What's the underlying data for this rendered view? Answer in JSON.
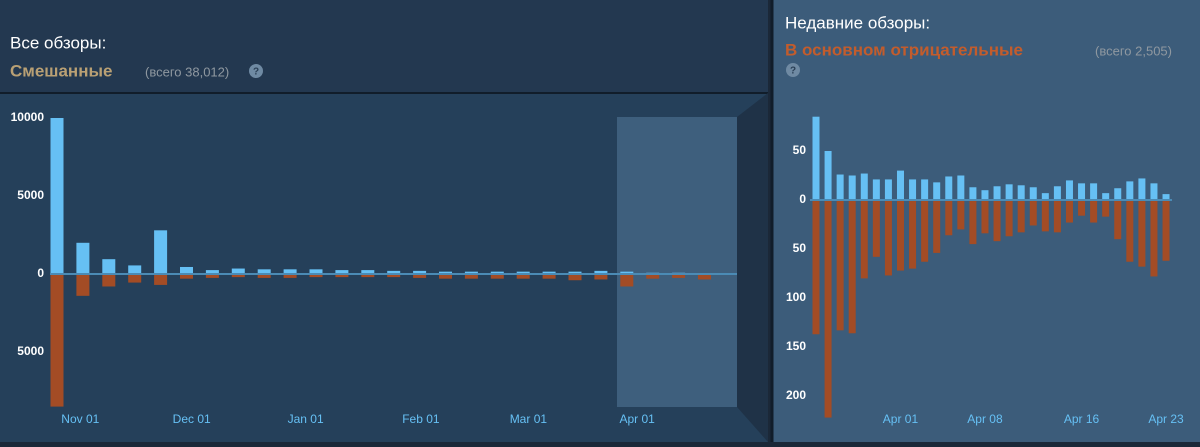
{
  "summaries": [
    {
      "label": "Все обзоры:",
      "rating": "Смешанные",
      "total": "(всего 38,012)",
      "help": "?"
    },
    {
      "label": "Недавние обзоры:",
      "rating": "В основном отрицательные",
      "total": "(всего 2,505)",
      "help": "?"
    }
  ],
  "chart_data": [
    {
      "type": "bar",
      "categories": [
        null,
        null,
        null,
        null,
        null,
        null,
        null,
        null,
        null,
        null,
        null,
        null,
        null,
        null,
        null,
        null,
        null,
        null,
        null,
        null,
        null,
        null,
        null,
        null,
        null,
        null
      ],
      "xticks": [
        {
          "value": 0.9,
          "label": "Nov 01"
        },
        {
          "value": 5.2,
          "label": "Dec 01"
        },
        {
          "value": 9.6,
          "label": "Jan 01"
        },
        {
          "value": 14.05,
          "label": "Feb 01"
        },
        {
          "value": 18.2,
          "label": "Mar 01"
        },
        {
          "value": 22.4,
          "label": "Apr 01"
        }
      ],
      "series": [
        {
          "color": "#66c0f4",
          "values": [
            10000,
            2000,
            950,
            550,
            2800,
            450,
            250,
            350,
            300,
            300,
            300,
            250,
            250,
            200,
            200,
            150,
            150,
            150,
            150,
            150,
            150,
            200,
            150,
            80,
            80,
            50
          ]
        },
        {
          "color": "#a34c25",
          "values": [
            -8500,
            -1400,
            -800,
            -550,
            -700,
            -300,
            -250,
            -200,
            -250,
            -250,
            -200,
            -200,
            -200,
            -200,
            -250,
            -300,
            -300,
            -300,
            -300,
            -300,
            -400,
            -350,
            -800,
            -300,
            -250,
            -350
          ]
        }
      ],
      "ylim": [
        -8500,
        10000
      ],
      "yticks": [
        10000,
        5000,
        0,
        {
          "value": -5000,
          "label": "5000"
        }
      ]
    },
    {
      "type": "bar",
      "categories": [
        null,
        null,
        null,
        null,
        null,
        null,
        null,
        "Apr 01",
        null,
        null,
        null,
        null,
        null,
        null,
        "Apr 08",
        null,
        null,
        null,
        null,
        null,
        null,
        null,
        "Apr 16",
        null,
        null,
        null,
        null,
        null,
        null,
        "Apr 23"
      ],
      "series": [
        {
          "color": "#66c0f4",
          "values": [
            85,
            50,
            26,
            25,
            27,
            21,
            21,
            30,
            21,
            21,
            18,
            24,
            25,
            13,
            10,
            14,
            16,
            15,
            13,
            7,
            14,
            20,
            17,
            17,
            7,
            12,
            19,
            22,
            17,
            6
          ]
        },
        {
          "color": "#a34c25",
          "values": [
            -137,
            -222,
            -133,
            -136,
            -80,
            -58,
            -77,
            -72,
            -70,
            -63,
            -54,
            -36,
            -30,
            -45,
            -34,
            -42,
            -37,
            -33,
            -26,
            -32,
            -33,
            -23,
            -16,
            -23,
            -17,
            -40,
            -63,
            -68,
            -78,
            -62
          ]
        }
      ],
      "ylim": [
        -225,
        88
      ],
      "yticks": [
        50,
        0,
        {
          "value": -50,
          "label": "50"
        },
        {
          "value": -100,
          "label": "100"
        },
        {
          "value": -150,
          "label": "150"
        },
        {
          "value": -200,
          "label": "200"
        }
      ]
    }
  ]
}
